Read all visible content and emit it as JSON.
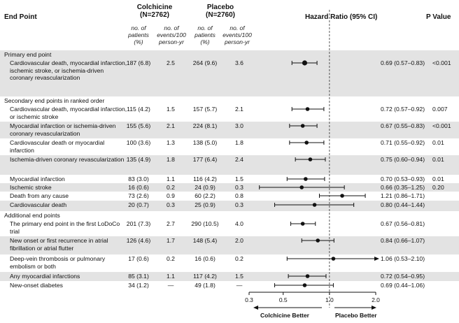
{
  "headers": {
    "end_point": "End Point",
    "colchicine": "Colchicine",
    "colchicine_n": "(N=2762)",
    "placebo": "Placebo",
    "placebo_n": "(N=2760)",
    "hazard_ratio": "Hazard Ratio (95% CI)",
    "p_value": "P Value",
    "sub_patients": "no. of patients (%)",
    "sub_events": "no. of events/100 person-yr"
  },
  "x_axis": {
    "ticks": [
      "0.3",
      "0.5",
      "1.0",
      "2.0"
    ],
    "tick_values": [
      0.3,
      0.5,
      1.0,
      2.0
    ],
    "left_label": "Colchicine Better",
    "right_label": "Placebo Better"
  },
  "rows": [
    {
      "type": "section",
      "label": "Primary end point",
      "shade": true
    },
    {
      "type": "data",
      "label": "Cardiovascular death, myocardial infarction, ischemic stroke, or ischemia-driven coronary revascularization",
      "c_n": "187 (6.8)",
      "c_rate": "2.5",
      "p_n": "264 (9.6)",
      "p_rate": "3.6",
      "hr_text": "0.69 (0.57–0.83)",
      "pval": "<0.001",
      "hr": 0.69,
      "lo": 0.57,
      "hi": 0.83,
      "shade": true
    },
    {
      "type": "section",
      "label": "Secondary end points in ranked order",
      "shade": false
    },
    {
      "type": "data",
      "label": "Cardiovascular death, myocardial infarction, or ischemic stroke",
      "c_n": "115 (4.2)",
      "c_rate": "1.5",
      "p_n": "157 (5.7)",
      "p_rate": "2.1",
      "hr_text": "0.72 (0.57–0.92)",
      "pval": "0.007",
      "hr": 0.72,
      "lo": 0.57,
      "hi": 0.92,
      "shade": false
    },
    {
      "type": "data",
      "label": "Myocardial infarction or ischemia-driven coronary revascularization",
      "c_n": "155 (5.6)",
      "c_rate": "2.1",
      "p_n": "224 (8.1)",
      "p_rate": "3.0",
      "hr_text": "0.67 (0.55–0.83)",
      "pval": "<0.001",
      "hr": 0.67,
      "lo": 0.55,
      "hi": 0.83,
      "shade": true
    },
    {
      "type": "data",
      "label": "Cardiovascular death or myocardial infarction",
      "c_n": "100 (3.6)",
      "c_rate": "1.3",
      "p_n": "138 (5.0)",
      "p_rate": "1.8",
      "hr_text": "0.71 (0.55–0.92)",
      "pval": "0.01",
      "hr": 0.71,
      "lo": 0.55,
      "hi": 0.92,
      "shade": false
    },
    {
      "type": "data",
      "label": "Ischemia-driven coronary revascularization",
      "c_n": "135 (4.9)",
      "c_rate": "1.8",
      "p_n": "177 (6.4)",
      "p_rate": "2.4",
      "hr_text": "0.75 (0.60–0.94)",
      "pval": "0.01",
      "hr": 0.75,
      "lo": 0.6,
      "hi": 0.94,
      "shade": true
    },
    {
      "type": "data",
      "label": "Myocardial infarction",
      "c_n": "83 (3.0)",
      "c_rate": "1.1",
      "p_n": "116 (4.2)",
      "p_rate": "1.5",
      "hr_text": "0.70 (0.53–0.93)",
      "pval": "0.01",
      "hr": 0.7,
      "lo": 0.53,
      "hi": 0.93,
      "shade": false
    },
    {
      "type": "data",
      "label": "Ischemic stroke",
      "c_n": "16 (0.6)",
      "c_rate": "0.2",
      "p_n": "24 (0.9)",
      "p_rate": "0.3",
      "hr_text": "0.66 (0.35–1.25)",
      "pval": "0.20",
      "hr": 0.66,
      "lo": 0.35,
      "hi": 1.25,
      "shade": true
    },
    {
      "type": "data",
      "label": "Death from any cause",
      "c_n": "73 (2.6)",
      "c_rate": "0.9",
      "p_n": "60 (2.2)",
      "p_rate": "0.8",
      "hr_text": "1.21 (0.86–1.71)",
      "pval": "",
      "hr": 1.21,
      "lo": 0.86,
      "hi": 1.71,
      "shade": false
    },
    {
      "type": "data",
      "label": "Cardiovascular death",
      "c_n": "20 (0.7)",
      "c_rate": "0.3",
      "p_n": "25 (0.9)",
      "p_rate": "0.3",
      "hr_text": "0.80 (0.44–1.44)",
      "pval": "",
      "hr": 0.8,
      "lo": 0.44,
      "hi": 1.44,
      "shade": true
    },
    {
      "type": "section",
      "label": "Additional end points",
      "shade": false
    },
    {
      "type": "data",
      "label": "The primary end point in the first LoDoCo trial",
      "c_n": "201 (7.3)",
      "c_rate": "2.7",
      "p_n": "290 (10.5)",
      "p_rate": "4.0",
      "hr_text": "0.67 (0.56–0.81)",
      "pval": "",
      "hr": 0.67,
      "lo": 0.56,
      "hi": 0.81,
      "shade": false
    },
    {
      "type": "data",
      "label": "New onset or first recurrence in atrial fibrillation or atrial flutter",
      "c_n": "126 (4.6)",
      "c_rate": "1.7",
      "p_n": "148 (5.4)",
      "p_rate": "2.0",
      "hr_text": "0.84 (0.66–1.07)",
      "pval": "",
      "hr": 0.84,
      "lo": 0.66,
      "hi": 1.07,
      "shade": true
    },
    {
      "type": "data",
      "label": "Deep-vein thrombosis or pulmonary embolism or both",
      "c_n": "17 (0.6)",
      "c_rate": "0.2",
      "p_n": "16 (0.6)",
      "p_rate": "0.2",
      "hr_text": "1.06 (0.53–2.10)",
      "pval": "",
      "hr": 1.06,
      "lo": 0.53,
      "hi": 2.1,
      "arrow_right": true,
      "shade": false
    },
    {
      "type": "data",
      "label": "Any myocardial infarctions",
      "c_n": "85 (3.1)",
      "c_rate": "1.1",
      "p_n": "117 (4.2)",
      "p_rate": "1.5",
      "hr_text": "0.72 (0.54–0.95)",
      "pval": "",
      "hr": 0.72,
      "lo": 0.54,
      "hi": 0.95,
      "shade": true
    },
    {
      "type": "data",
      "label": "New-onset diabetes",
      "c_n": "34 (1.2)",
      "c_rate": "—",
      "p_n": "49 (1.8)",
      "p_rate": "—",
      "hr_text": "0.69 (0.44–1.06)",
      "pval": "",
      "hr": 0.69,
      "lo": 0.44,
      "hi": 1.06,
      "shade": false
    }
  ]
}
